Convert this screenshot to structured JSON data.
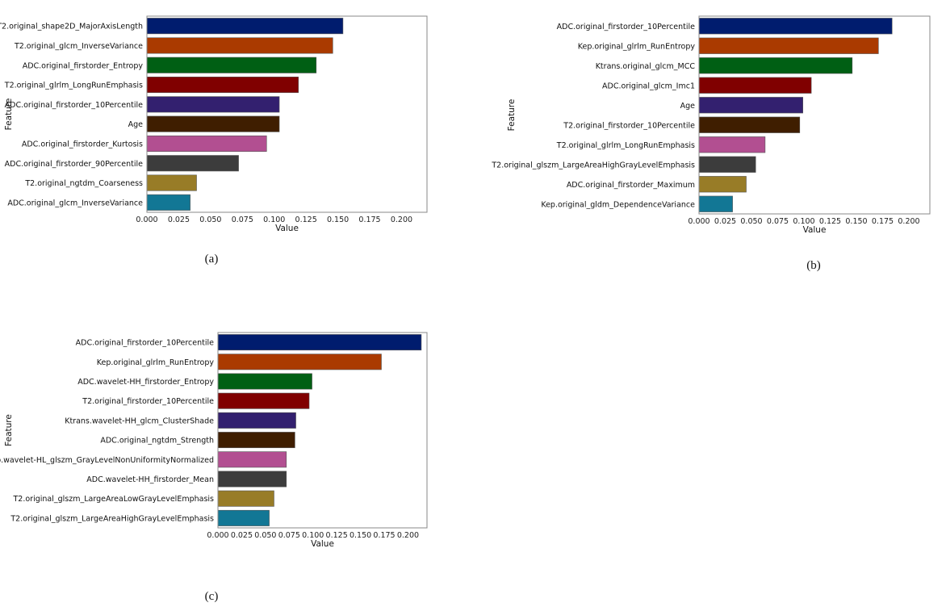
{
  "palette": [
    "#001c6e",
    "#aa3a00",
    "#005f14",
    "#800000",
    "#33206f",
    "#3f1e00",
    "#b24f91",
    "#3c3c3c",
    "#987c27",
    "#127795"
  ],
  "chart_data": [
    {
      "type": "bar",
      "orientation": "horizontal",
      "caption": "(a)",
      "xlabel": "Value",
      "ylabel": "Feature",
      "xlim": [
        0,
        0.22
      ],
      "xticks": [
        "0.000",
        "0.025",
        "0.050",
        "0.075",
        "0.100",
        "0.125",
        "0.150",
        "0.175",
        "0.200"
      ],
      "categories": [
        "T2.original_shape2D_MajorAxisLength",
        "T2.original_glcm_InverseVariance",
        "ADC.original_firstorder_Entropy",
        "T2.original_glrlm_LongRunEmphasis",
        "ADC.original_firstorder_10Percentile",
        "Age",
        "ADC.original_firstorder_Kurtosis",
        "ADC.original_firstorder_90Percentile",
        "T2.original_ngtdm_Coarseness",
        "ADC.original_glcm_InverseVariance"
      ],
      "values": [
        0.154,
        0.146,
        0.133,
        0.119,
        0.104,
        0.104,
        0.094,
        0.072,
        0.039,
        0.034
      ]
    },
    {
      "type": "bar",
      "orientation": "horizontal",
      "caption": "(b)",
      "xlabel": "Value",
      "ylabel": "Feature",
      "xlim": [
        0,
        0.22
      ],
      "xticks": [
        "0.000",
        "0.025",
        "0.050",
        "0.075",
        "0.100",
        "0.125",
        "0.150",
        "0.175",
        "0.200"
      ],
      "categories": [
        "ADC.original_firstorder_10Percentile",
        "Kep.original_glrlm_RunEntropy",
        "Ktrans.original_glcm_MCC",
        "ADC.original_glcm_Imc1",
        "Age",
        "T2.original_firstorder_10Percentile",
        "T2.original_glrlm_LongRunEmphasis",
        "T2.original_glszm_LargeAreaHighGrayLevelEmphasis",
        "ADC.original_firstorder_Maximum",
        "Kep.original_gldm_DependenceVariance"
      ],
      "values": [
        0.184,
        0.171,
        0.146,
        0.107,
        0.099,
        0.096,
        0.063,
        0.054,
        0.045,
        0.032
      ]
    },
    {
      "type": "bar",
      "orientation": "horizontal",
      "caption": "(c)",
      "xlabel": "Value",
      "ylabel": "Feature",
      "xlim": [
        0,
        0.22
      ],
      "xticks": [
        "0.000",
        "0.025",
        "0.050",
        "0.075",
        "0.100",
        "0.125",
        "0.150",
        "0.175",
        "0.200"
      ],
      "categories": [
        "ADC.original_firstorder_10Percentile",
        "Kep.original_glrlm_RunEntropy",
        "ADC.wavelet-HH_firstorder_Entropy",
        "T2.original_firstorder_10Percentile",
        "Ktrans.wavelet-HH_glcm_ClusterShade",
        "ADC.original_ngtdm_Strength",
        "Kep.wavelet-HL_glszm_GrayLevelNonUniformityNormalized",
        "ADC.wavelet-HH_firstorder_Mean",
        "T2.original_glszm_LargeAreaLowGrayLevelEmphasis",
        "T2.original_glszm_LargeAreaHighGrayLevelEmphasis"
      ],
      "values": [
        0.214,
        0.172,
        0.099,
        0.096,
        0.082,
        0.081,
        0.072,
        0.072,
        0.059,
        0.054
      ]
    }
  ]
}
